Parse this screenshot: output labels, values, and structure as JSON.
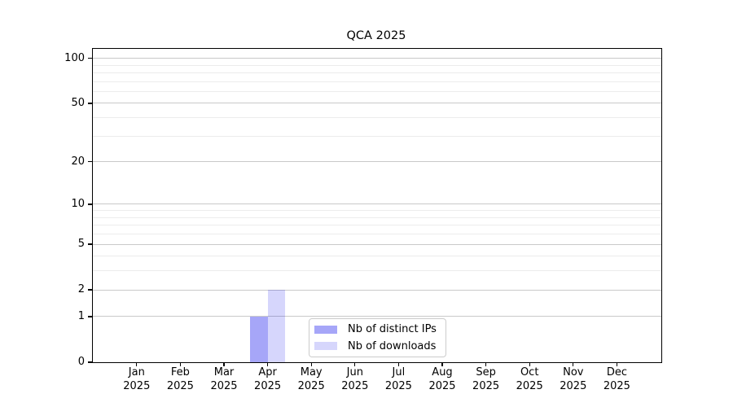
{
  "chart_data": {
    "type": "bar",
    "title": "QCA 2025",
    "categories": [
      {
        "month": "Jan",
        "year": "2025"
      },
      {
        "month": "Feb",
        "year": "2025"
      },
      {
        "month": "Mar",
        "year": "2025"
      },
      {
        "month": "Apr",
        "year": "2025"
      },
      {
        "month": "May",
        "year": "2025"
      },
      {
        "month": "Jun",
        "year": "2025"
      },
      {
        "month": "Jul",
        "year": "2025"
      },
      {
        "month": "Aug",
        "year": "2025"
      },
      {
        "month": "Sep",
        "year": "2025"
      },
      {
        "month": "Oct",
        "year": "2025"
      },
      {
        "month": "Nov",
        "year": "2025"
      },
      {
        "month": "Dec",
        "year": "2025"
      }
    ],
    "series": [
      {
        "name": "Nb of distinct IPs",
        "color": "rgba(0,0,235,0.35)",
        "values": [
          0,
          0,
          0,
          1,
          0,
          0,
          0,
          0,
          0,
          0,
          0,
          0
        ]
      },
      {
        "name": "Nb of downloads",
        "color": "rgba(0,0,235,0.16)",
        "values": [
          0,
          0,
          0,
          2,
          0,
          0,
          0,
          0,
          0,
          0,
          0,
          0
        ]
      }
    ],
    "y_scale": "log10(value+1)",
    "y_major_ticks": [
      0,
      1,
      2,
      5,
      10,
      20,
      50,
      100
    ],
    "y_minor_ticks": [
      3,
      4,
      6,
      7,
      8,
      9,
      30,
      40,
      60,
      70,
      80,
      90
    ],
    "ylim": [
      0,
      116
    ],
    "xlabel": "",
    "ylabel": "",
    "grid": "horizontal major and minor",
    "legend_position": "lower center inside plot",
    "colors": {
      "axis": "#000000",
      "grid_major": "#c9c9c9",
      "grid_minor": "#ececec",
      "legend_border": "#cccccc",
      "background": "#ffffff"
    }
  }
}
